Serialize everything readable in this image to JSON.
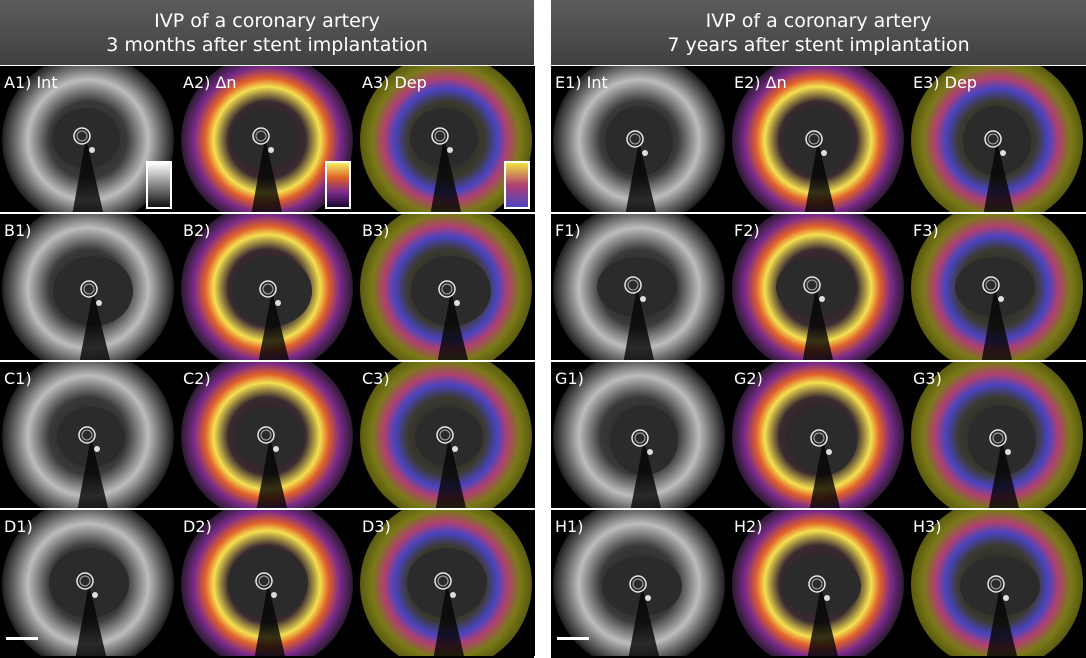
{
  "panels": [
    {
      "id": "left",
      "title_line1": "IVP of a coronary artery",
      "title_line2": "3 months after stent implantation",
      "rows": [
        {
          "labels": [
            "A1) Int",
            "A2) Δn",
            "A3) Dep"
          ]
        },
        {
          "labels": [
            "B1)",
            "B2)",
            "B3)"
          ]
        },
        {
          "labels": [
            "C1)",
            "C2)",
            "C3)"
          ]
        },
        {
          "labels": [
            "D1)",
            "D2)",
            "D3)"
          ]
        }
      ]
    },
    {
      "id": "right",
      "title_line1": "IVP of a coronary artery",
      "title_line2": "7 years after stent implantation",
      "rows": [
        {
          "labels": [
            "E1) Int",
            "E2) Δn",
            "E3) Dep"
          ]
        },
        {
          "labels": [
            "F1)",
            "F2)",
            "F3)"
          ]
        },
        {
          "labels": [
            "G1)",
            "G2)",
            "G3)"
          ]
        },
        {
          "labels": [
            "H1)",
            "H2)",
            "H3)"
          ]
        }
      ]
    }
  ],
  "colors": {
    "header_bg": "#4a4a4a",
    "int_map": "grayscale",
    "dn_map": [
      "#1a0010",
      "#6a1a7a",
      "#d0402a",
      "#f0a020",
      "#f5f060"
    ],
    "dep_map": [
      "#5a5a10",
      "#b04070",
      "#5048c0"
    ]
  }
}
